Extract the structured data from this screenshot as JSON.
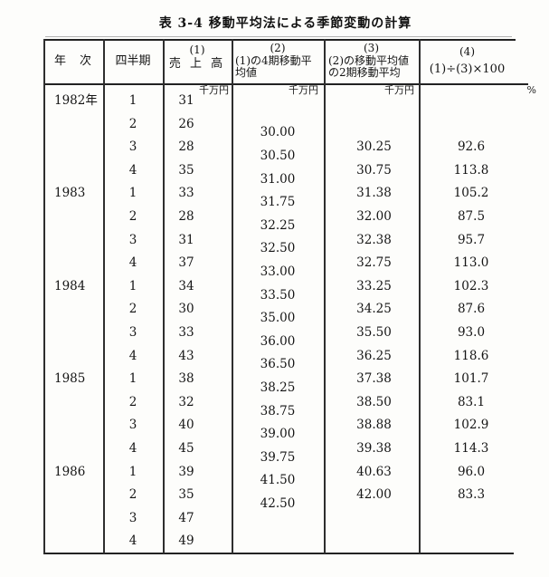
{
  "title": "表 3-4 移動平均法による季節変動の計算",
  "table": {
    "headers": {
      "year": "年　次",
      "quarter": "四半期",
      "col1_num": "(1)",
      "col1": "売 上 高",
      "col2_num": "(2)",
      "col2_line1": "(1)の4期移動平",
      "col2_line2": "均値",
      "col3_num": "(3)",
      "col3_line1": "(2)の移動平均値",
      "col3_line2": "の2期移動平均",
      "col4_num": "(4)",
      "col4": "(1)÷(3)×100"
    },
    "units": {
      "sales": "千万円",
      "ma4": "千万円",
      "ma2": "千万円",
      "ratio": "%"
    },
    "rows": [
      {
        "year": "1982年",
        "quarter": "1",
        "sales": "31"
      },
      {
        "quarter": "2",
        "sales": "26",
        "ma4_after": "30.00"
      },
      {
        "quarter": "3",
        "sales": "28",
        "ma4_after": "30.50",
        "ma2": "30.25",
        "ratio": "92.6"
      },
      {
        "quarter": "4",
        "sales": "35",
        "ma4_after": "31.00",
        "ma2": "30.75",
        "ratio": "113.8"
      },
      {
        "year": "1983",
        "quarter": "1",
        "sales": "33",
        "ma4_after": "31.75",
        "ma2": "31.38",
        "ratio": "105.2"
      },
      {
        "quarter": "2",
        "sales": "28",
        "ma4_after": "32.25",
        "ma2": "32.00",
        "ratio": "87.5"
      },
      {
        "quarter": "3",
        "sales": "31",
        "ma4_after": "32.50",
        "ma2": "32.38",
        "ratio": "95.7"
      },
      {
        "quarter": "4",
        "sales": "37",
        "ma4_after": "33.00",
        "ma2": "32.75",
        "ratio": "113.0"
      },
      {
        "year": "1984",
        "quarter": "1",
        "sales": "34",
        "ma4_after": "33.50",
        "ma2": "33.25",
        "ratio": "102.3"
      },
      {
        "quarter": "2",
        "sales": "30",
        "ma4_after": "35.00",
        "ma2": "34.25",
        "ratio": "87.6"
      },
      {
        "quarter": "3",
        "sales": "33",
        "ma4_after": "36.00",
        "ma2": "35.50",
        "ratio": "93.0"
      },
      {
        "quarter": "4",
        "sales": "43",
        "ma4_after": "36.50",
        "ma2": "36.25",
        "ratio": "118.6"
      },
      {
        "year": "1985",
        "quarter": "1",
        "sales": "38",
        "ma4_after": "38.25",
        "ma2": "37.38",
        "ratio": "101.7"
      },
      {
        "quarter": "2",
        "sales": "32",
        "ma4_after": "38.75",
        "ma2": "38.50",
        "ratio": "83.1"
      },
      {
        "quarter": "3",
        "sales": "40",
        "ma4_after": "39.00",
        "ma2": "38.88",
        "ratio": "102.9"
      },
      {
        "quarter": "4",
        "sales": "45",
        "ma4_after": "39.75",
        "ma2": "39.38",
        "ratio": "114.3"
      },
      {
        "year": "1986",
        "quarter": "1",
        "sales": "39",
        "ma4_after": "41.50",
        "ma2": "40.63",
        "ratio": "96.0"
      },
      {
        "quarter": "2",
        "sales": "35",
        "ma4_after": "42.50",
        "ma2": "42.00",
        "ratio": "83.3"
      },
      {
        "quarter": "3",
        "sales": "47"
      },
      {
        "quarter": "4",
        "sales": "49"
      }
    ]
  }
}
